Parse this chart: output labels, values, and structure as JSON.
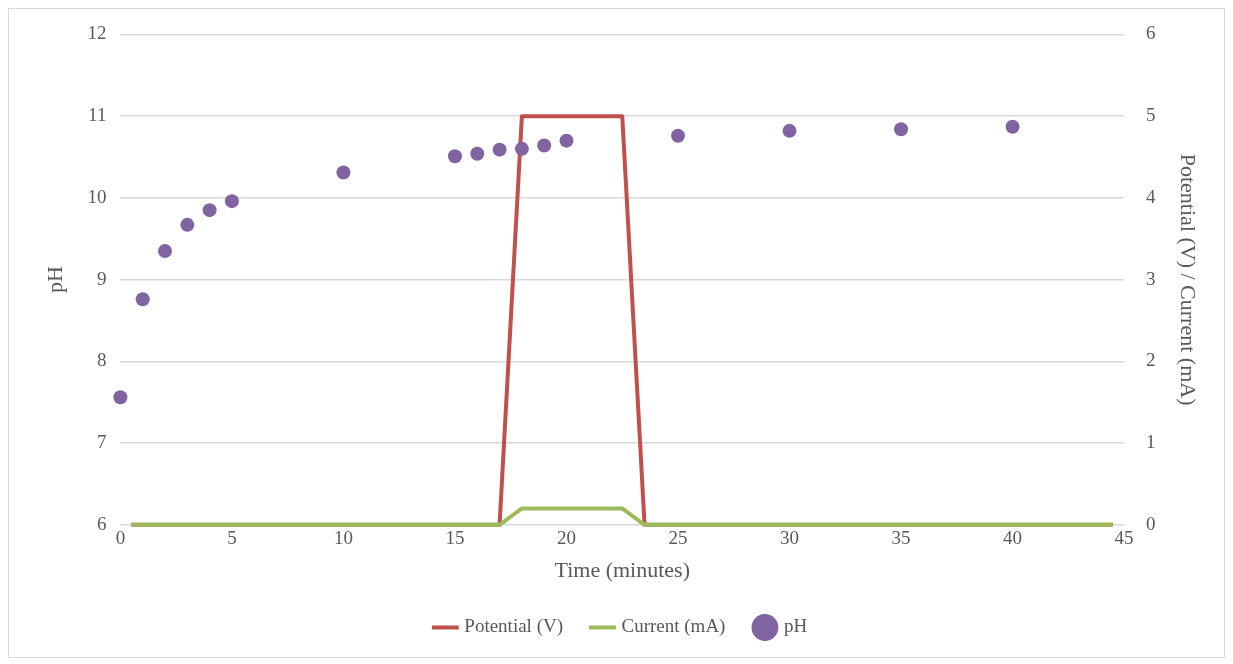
{
  "chart_data": {
    "type": "line",
    "xlabel": "Time (minutes)",
    "ylabel": "pH",
    "y2label": "Potential (V) / Current (mA)",
    "xlim": [
      0,
      45
    ],
    "xticks": [
      0,
      5,
      10,
      15,
      20,
      25,
      30,
      35,
      40,
      45
    ],
    "ylim": [
      6,
      12
    ],
    "yticks": [
      6,
      7,
      8,
      9,
      10,
      11,
      12
    ],
    "y2lim": [
      0,
      6
    ],
    "y2ticks": [
      0,
      1,
      2,
      3,
      4,
      5,
      6
    ],
    "grid": "y",
    "legend": "bottom",
    "series": [
      {
        "name": "Potential (V)",
        "type": "line",
        "axis": "y2",
        "color": "#c0504d",
        "marker": "none",
        "x": [
          0.5,
          17,
          18,
          22.5,
          23.5,
          44.5
        ],
        "values": [
          0,
          0,
          5,
          5,
          0,
          0
        ]
      },
      {
        "name": "Current (mA)",
        "type": "line",
        "axis": "y2",
        "color": "#9bbb59",
        "marker": "none",
        "x": [
          0.5,
          17,
          18,
          22.5,
          23.5,
          44.5
        ],
        "values": [
          0,
          0,
          0.2,
          0.2,
          0,
          0
        ]
      },
      {
        "name": "pH",
        "type": "scatter",
        "color": "#8064a2",
        "marker": "circle",
        "x": [
          0,
          1,
          2,
          3,
          4,
          5,
          10,
          15,
          16,
          17,
          18,
          19,
          20,
          25,
          30,
          35,
          40
        ],
        "values": [
          7.56,
          8.76,
          9.35,
          9.67,
          9.85,
          9.96,
          10.31,
          10.51,
          10.54,
          10.59,
          10.6,
          10.64,
          10.7,
          10.76,
          10.82,
          10.84,
          10.87
        ]
      }
    ]
  }
}
